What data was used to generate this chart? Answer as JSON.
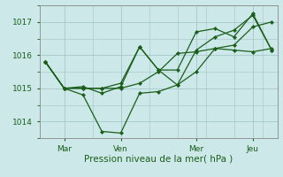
{
  "background_color": "#cce8e8",
  "grid_color": "#aacccc",
  "line_color": "#1a5e1a",
  "marker_color": "#1a5e1a",
  "xlabel": "Pression niveau de la mer( hPa )",
  "ylim": [
    1013.5,
    1017.5
  ],
  "yticks": [
    1014,
    1015,
    1016,
    1017
  ],
  "xtick_labels": [
    "Mar",
    "Ven",
    "Mer",
    "Jeu"
  ],
  "xtick_positions": [
    1,
    4,
    8,
    11
  ],
  "series1": {
    "x": [
      0,
      1,
      2,
      3,
      4,
      5,
      6,
      7,
      8,
      9,
      10,
      11,
      12
    ],
    "y": [
      1015.8,
      1015.0,
      1014.8,
      1013.7,
      1013.65,
      1014.85,
      1014.9,
      1015.1,
      1015.5,
      1016.2,
      1016.15,
      1016.1,
      1016.2
    ]
  },
  "series2": {
    "x": [
      0,
      1,
      2,
      3,
      4,
      5,
      6,
      7,
      8,
      9,
      10,
      11,
      12
    ],
    "y": [
      1015.8,
      1015.0,
      1015.0,
      1015.0,
      1015.0,
      1015.15,
      1015.5,
      1016.05,
      1016.1,
      1016.2,
      1016.3,
      1016.85,
      1017.0
    ]
  },
  "series3": {
    "x": [
      0,
      1,
      2,
      3,
      4,
      5,
      6,
      7,
      8,
      9,
      10,
      11,
      12
    ],
    "y": [
      1015.8,
      1015.0,
      1015.0,
      1015.0,
      1015.15,
      1016.25,
      1015.55,
      1015.1,
      1016.15,
      1016.55,
      1016.75,
      1017.2,
      1016.15
    ]
  },
  "series4": {
    "x": [
      0,
      1,
      2,
      3,
      4,
      5,
      6,
      7,
      8,
      9,
      10,
      11,
      12
    ],
    "y": [
      1015.8,
      1015.0,
      1015.05,
      1014.85,
      1015.05,
      1016.25,
      1015.55,
      1015.55,
      1016.7,
      1016.8,
      1016.55,
      1017.25,
      1016.15
    ]
  },
  "vline_positions": [
    1,
    4,
    8,
    11
  ],
  "vline_color": "#cc8888"
}
